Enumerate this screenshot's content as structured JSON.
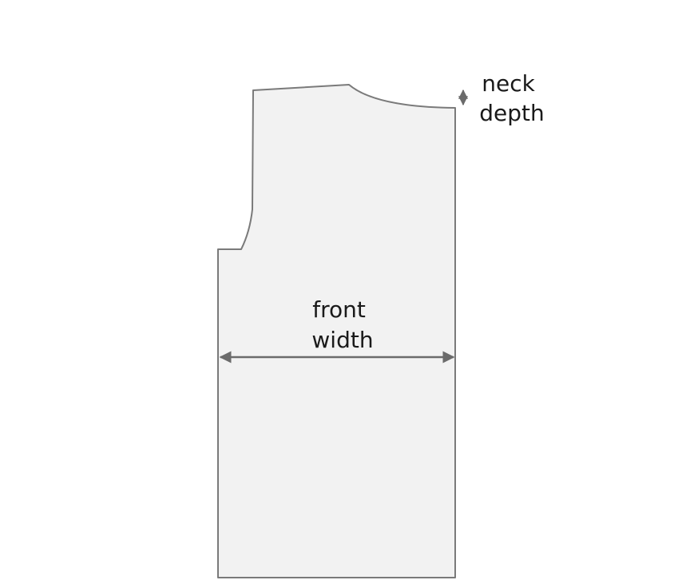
{
  "diagram": {
    "labels": {
      "neck_line1": "neck",
      "neck_line2": "depth",
      "front_line1": "front",
      "front_line2": "width"
    },
    "colors": {
      "panel_fill": "#f2f2f2",
      "panel_stroke": "#7a7a7a",
      "arrow": "#6b6b6b",
      "text": "#1a1a1a"
    }
  }
}
